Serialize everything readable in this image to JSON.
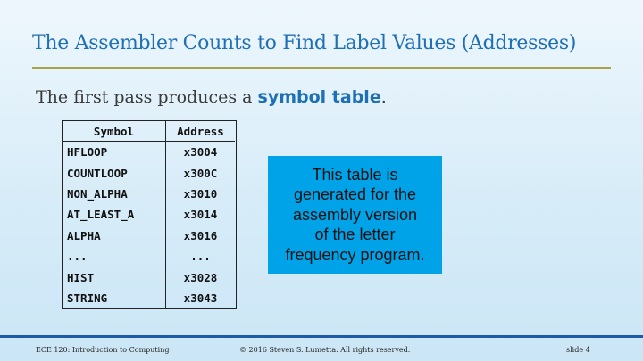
{
  "slide": {
    "title": "The Assembler Counts to Find Label Values (Addresses)",
    "subtitle_prefix": "The first pass produces a ",
    "subtitle_keyword": "symbol table",
    "subtitle_suffix": "."
  },
  "table": {
    "headers": [
      "Symbol",
      "Address"
    ],
    "rows": [
      [
        "HFLOOP",
        "x3004"
      ],
      [
        "COUNTLOOP",
        "x300C"
      ],
      [
        "NON_ALPHA",
        "x3010"
      ],
      [
        "AT_LEAST_A",
        "x3014"
      ],
      [
        "ALPHA",
        "x3016"
      ],
      [
        "...",
        "..."
      ],
      [
        "HIST",
        "x3028"
      ],
      [
        "STRING",
        "x3043"
      ]
    ]
  },
  "callout": {
    "lines": [
      "This table is",
      "generated for the",
      "assembly version",
      "of the letter",
      "frequency program."
    ],
    "color": "#00A3E8"
  },
  "footer": {
    "course": "ECE 120: Introduction to Computing",
    "copyright": "© 2016 Steven S. Lumetta.  All rights reserved.",
    "slide_number": "slide 4"
  },
  "colors": {
    "accent": "#1F6FB5",
    "rule": "#A8A24A",
    "footer_bar": "#1D5AA8"
  }
}
